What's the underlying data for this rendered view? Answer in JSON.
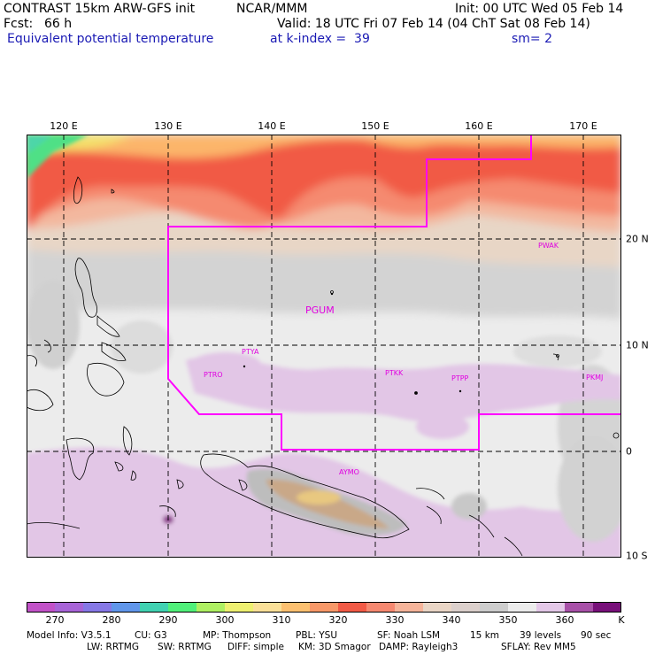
{
  "header": {
    "model_title": "CONTRAST 15km ARW-GFS init",
    "org": "NCAR/MMM",
    "init": "Init: 00 UTC Wed 05 Feb 14",
    "fcst_label": "Fcst:",
    "fcst_value": "66 h",
    "valid": "Valid: 18 UTC Fri 07 Feb 14 (04 ChT Sat 08 Feb 14)",
    "field": "Equivalent potential temperature",
    "level": "at k-index =  39",
    "smooth": "sm= 2"
  },
  "map": {
    "lon_labels": [
      "120 E",
      "130 E",
      "140 E",
      "150 E",
      "160 E",
      "170 E"
    ],
    "lat_labels": [
      "20 N",
      "10 N",
      "0",
      "10 S"
    ],
    "stations": [
      {
        "id": "PWAK"
      },
      {
        "id": "PGUM"
      },
      {
        "id": "PTYA"
      },
      {
        "id": "PTRO"
      },
      {
        "id": "PTKK"
      },
      {
        "id": "PTPP"
      },
      {
        "id": "PKMJ"
      },
      {
        "id": "AYMO"
      }
    ],
    "domain_color": "#ff00ff"
  },
  "colorbar": {
    "labels": [
      "270",
      "280",
      "290",
      "300",
      "310",
      "320",
      "330",
      "340",
      "350",
      "360"
    ],
    "units": "K",
    "colors": [
      "#c252c8",
      "#a864d8",
      "#8678e6",
      "#6096ea",
      "#40d2b2",
      "#50f07a",
      "#aef062",
      "#eef070",
      "#fae098",
      "#fcc070",
      "#f89868",
      "#f25a46",
      "#f68870",
      "#f6b49a",
      "#ead6c6",
      "#dcd0cc",
      "#cdcdcd",
      "#ececec",
      "#e4c8e8",
      "#a850a8",
      "#78107a"
    ]
  },
  "footer": {
    "line1": [
      "Model Info: V3.5.1",
      "CU: G3",
      "MP: Thompson",
      "PBL: YSU",
      "SF: Noah LSM",
      "15 km",
      "39 levels",
      "90 sec"
    ],
    "line2": [
      "LW: RRTMG",
      "SW: RRTMG",
      "DIFF: simple",
      "KM: 3D Smagor",
      "DAMP: Rayleigh3",
      "SFLAY: Rev MM5"
    ]
  }
}
